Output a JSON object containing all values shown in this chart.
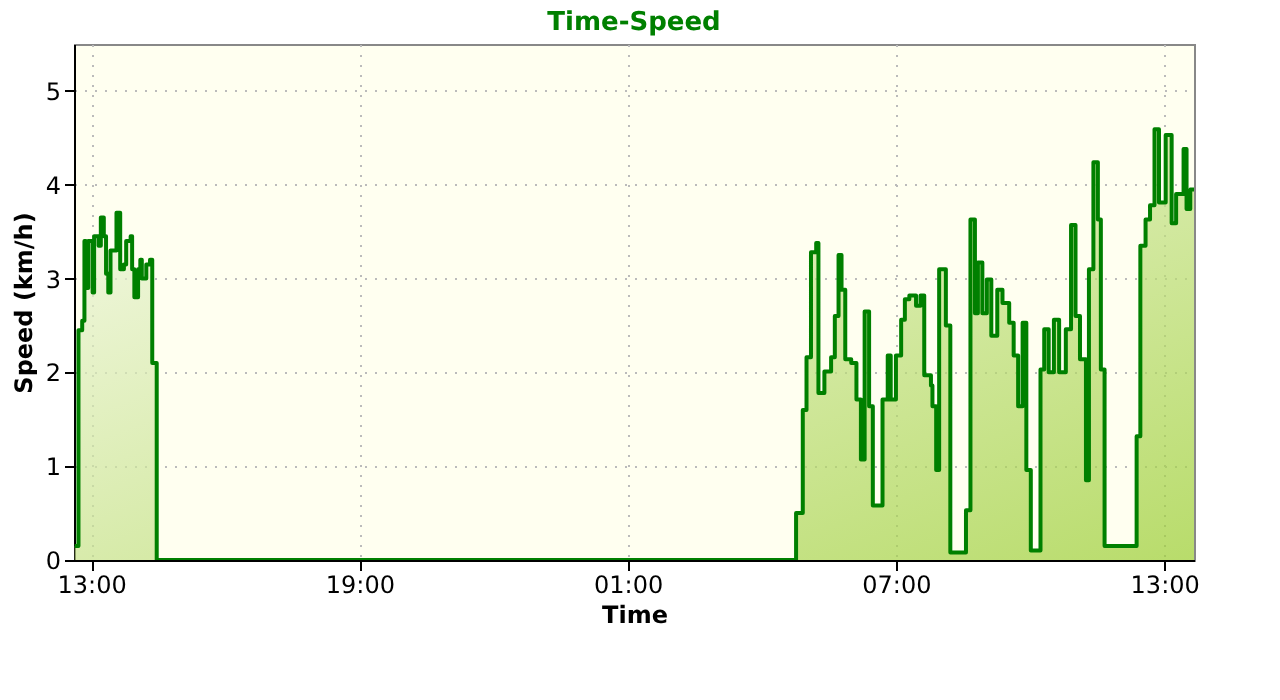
{
  "chart_data": {
    "type": "step",
    "title": "Time-Speed",
    "xlabel": "Time",
    "ylabel": "Speed (km/h)",
    "x": [
      "2000-01-01T12:38",
      "2000-01-01T12:43",
      "2000-01-01T12:48",
      "2000-01-01T12:51",
      "2000-01-01T12:53",
      "2000-01-01T12:56",
      "2000-01-01T13:02",
      "2000-01-01T13:04",
      "2000-01-01T13:10",
      "2000-01-01T13:13",
      "2000-01-01T13:17",
      "2000-01-01T13:20",
      "2000-01-01T13:23",
      "2000-01-01T13:26",
      "2000-01-01T13:31",
      "2000-01-01T13:34",
      "2000-01-01T13:39",
      "2000-01-01T13:44",
      "2000-01-01T13:47",
      "2000-01-01T13:53",
      "2000-01-01T13:55",
      "2000-01-01T13:58",
      "2000-01-01T14:03",
      "2000-01-01T14:06",
      "2000-01-01T14:08",
      "2000-01-01T14:14",
      "2000-01-01T14:19",
      "2000-01-01T14:22",
      "2000-01-01T14:28",
      "2000-01-02T04:46",
      "2000-01-02T04:55",
      "2000-01-02T05:00",
      "2000-01-02T05:06",
      "2000-01-02T05:13",
      "2000-01-02T05:16",
      "2000-01-02T05:24",
      "2000-01-02T05:33",
      "2000-01-02T05:38",
      "2000-01-02T05:43",
      "2000-01-02T05:47",
      "2000-01-02T05:52",
      "2000-01-02T06:00",
      "2000-01-02T06:07",
      "2000-01-02T06:13",
      "2000-01-02T06:18",
      "2000-01-02T06:24",
      "2000-01-02T06:29",
      "2000-01-02T06:42",
      "2000-01-02T06:49",
      "2000-01-02T06:53",
      "2000-01-02T07:00",
      "2000-01-02T07:07",
      "2000-01-02T07:12",
      "2000-01-02T07:18",
      "2000-01-02T07:27",
      "2000-01-02T07:33",
      "2000-01-02T07:38",
      "2000-01-02T07:47",
      "2000-01-02T07:49",
      "2000-01-02T07:54",
      "2000-01-02T07:58",
      "2000-01-02T08:07",
      "2000-01-02T08:13",
      "2000-01-02T08:34",
      "2000-01-02T08:40",
      "2000-01-02T08:46",
      "2000-01-02T08:50",
      "2000-01-02T08:56",
      "2000-01-02T09:02",
      "2000-01-02T09:08",
      "2000-01-02T09:16",
      "2000-01-02T09:23",
      "2000-01-02T09:32",
      "2000-01-02T09:38",
      "2000-01-02T09:44",
      "2000-01-02T09:50",
      "2000-01-02T09:55",
      "2000-01-02T10:01",
      "2000-01-02T10:14",
      "2000-01-02T10:19",
      "2000-01-02T10:25",
      "2000-01-02T10:32",
      "2000-01-02T10:39",
      "2000-01-02T10:48",
      "2000-01-02T10:55",
      "2000-01-02T11:01",
      "2000-01-02T11:07",
      "2000-01-02T11:15",
      "2000-01-02T11:19",
      "2000-01-02T11:25",
      "2000-01-02T11:31",
      "2000-01-02T11:35",
      "2000-01-02T11:40",
      "2000-01-02T12:23",
      "2000-01-02T12:28",
      "2000-01-02T12:35",
      "2000-01-02T12:41",
      "2000-01-02T12:47",
      "2000-01-02T12:53",
      "2000-01-02T13:02",
      "2000-01-02T13:10",
      "2000-01-02T13:16",
      "2000-01-02T13:26",
      "2000-01-02T13:30",
      "2000-01-02T13:35",
      "2000-01-02T13:40"
    ],
    "series": [
      {
        "color": "#008000",
        "line_style": "solid",
        "values": [
          0.15,
          2.45,
          2.55,
          3.4,
          2.9,
          3.4,
          2.85,
          3.45,
          3.35,
          3.65,
          3.45,
          3.05,
          2.85,
          3.3,
          3.3,
          3.7,
          3.1,
          3.15,
          3.4,
          3.45,
          3.1,
          2.8,
          3.1,
          3.2,
          3.0,
          3.15,
          3.2,
          2.1,
          0,
          0.5,
          1.6,
          2.16,
          3.28,
          3.38,
          1.78,
          2.01,
          2.16,
          2.6,
          3.25,
          2.88,
          2.14,
          2.1,
          1.71,
          1.07,
          2.65,
          1.64,
          0.58,
          1.71,
          2.18,
          1.71,
          2.18,
          2.56,
          2.78,
          2.82,
          2.71,
          2.82,
          1.97,
          1.86,
          1.64,
          0.96,
          3.1,
          2.5,
          0.08,
          0.53,
          3.63,
          2.63,
          3.17,
          2.63,
          2.99,
          2.39,
          2.88,
          2.74,
          2.53,
          2.18,
          1.64,
          2.53,
          0.96,
          0.1,
          2.03,
          2.46,
          2.0,
          2.56,
          2.0,
          2.46,
          3.57,
          2.6,
          2.14,
          0.85,
          3.1,
          4.24,
          3.63,
          2.03,
          0.15,
          1.32,
          3.35,
          3.63,
          3.78,
          4.59,
          3.81,
          4.53,
          3.59,
          3.9,
          4.38,
          3.74,
          3.95,
          3.95
        ]
      }
    ],
    "xlim": [
      "2000-01-01T12:37",
      "2000-01-02T13:40"
    ],
    "xticks": [
      {
        "value": "2000-01-01T13:00",
        "label": "13:00"
      },
      {
        "value": "2000-01-01T19:00",
        "label": "19:00"
      },
      {
        "value": "2000-01-02T01:00",
        "label": "01:00"
      },
      {
        "value": "2000-01-02T07:00",
        "label": "07:00"
      },
      {
        "value": "2000-01-02T13:00",
        "label": "13:00"
      }
    ],
    "ylim": [
      0,
      5.5
    ],
    "yticks": [
      0,
      1,
      2,
      3,
      4,
      5
    ],
    "grid": true
  }
}
